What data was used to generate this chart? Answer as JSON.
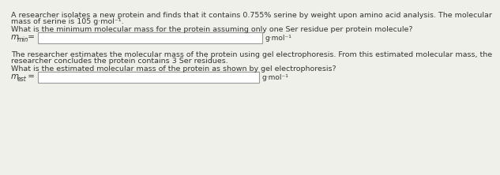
{
  "bg_color": "#f0f0eb",
  "text_color": "#333333",
  "box_color": "#ffffff",
  "box_edge_color": "#999999",
  "para1_line1": "A researcher isolates a new protein and finds that it contains 0.755% serine by weight upon amino acid analysis. The molecular",
  "para1_line2": "mass of serine is 105 g·mol⁻¹.",
  "question1": "What is the minimum molecular mass for the protein assuming only one Ser residue per protein molecule?",
  "label1_main": "m",
  "label1_sub": "min",
  "label1_eq": " =",
  "unit1": "g·mol⁻¹",
  "para2_line1": "The researcher estimates the molecular mass of the protein using gel electrophoresis. From this estimated molecular mass, the",
  "para2_line2": "researcher concludes the protein contains 3 Ser residues.",
  "question2": "What is the estimated molecular mass of the protein as shown by gel electrophoresis?",
  "label2_main": "m",
  "label2_sub": "est",
  "label2_eq": " =",
  "unit2": "g·mol⁻¹",
  "fontsize_body": 6.8,
  "fontsize_label_main": 7.5,
  "fontsize_label_sub": 5.5,
  "fontsize_unit": 6.5
}
